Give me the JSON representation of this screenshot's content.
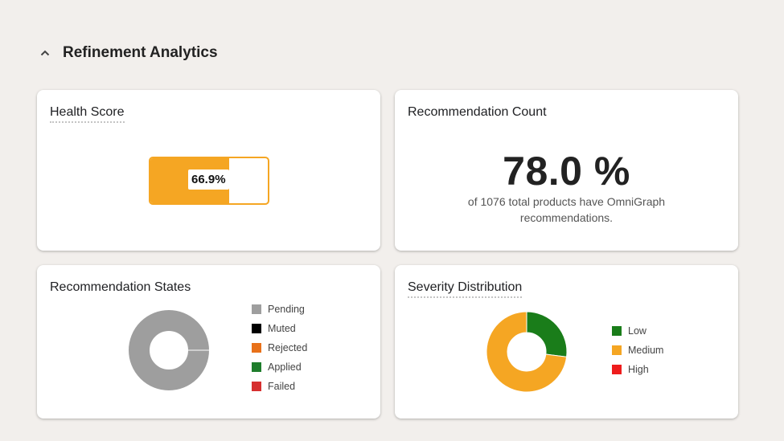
{
  "section": {
    "title": "Refinement Analytics"
  },
  "icons": {
    "collapse": "chevron-up-icon"
  },
  "health": {
    "title": "Health Score",
    "value_label": "66.9%",
    "fraction": 0.669,
    "color": "#f5a623"
  },
  "recommendation_count": {
    "title": "Recommendation Count",
    "percent": "78.0 %",
    "description": "of 1076 total products have OmniGraph recommendations."
  },
  "states": {
    "title": "Recommendation States",
    "legend": [
      {
        "label": "Pending",
        "color": "#9e9e9e"
      },
      {
        "label": "Muted",
        "color": "#000000"
      },
      {
        "label": "Rejected",
        "color": "#e8711a"
      },
      {
        "label": "Applied",
        "color": "#1e7d2c"
      },
      {
        "label": "Failed",
        "color": "#d62f2f"
      }
    ]
  },
  "severity": {
    "title": "Severity Distribution",
    "legend": [
      {
        "label": "Low",
        "color": "#1a7d1a"
      },
      {
        "label": "Medium",
        "color": "#f5a623"
      },
      {
        "label": "High",
        "color": "#ee1c1c"
      }
    ]
  },
  "chart_data": [
    {
      "type": "pie",
      "title": "Recommendation States",
      "categories": [
        "Pending",
        "Muted",
        "Rejected",
        "Applied",
        "Failed"
      ],
      "values": [
        100,
        0,
        0,
        0,
        0
      ],
      "colors": [
        "#9e9e9e",
        "#000000",
        "#e8711a",
        "#1e7d2c",
        "#d62f2f"
      ],
      "legend": "right"
    },
    {
      "type": "pie",
      "title": "Severity Distribution",
      "categories": [
        "Low",
        "Medium",
        "High"
      ],
      "values": [
        27,
        73,
        0
      ],
      "colors": [
        "#1a7d1a",
        "#f5a623",
        "#ee1c1c"
      ],
      "legend": "right"
    }
  ]
}
